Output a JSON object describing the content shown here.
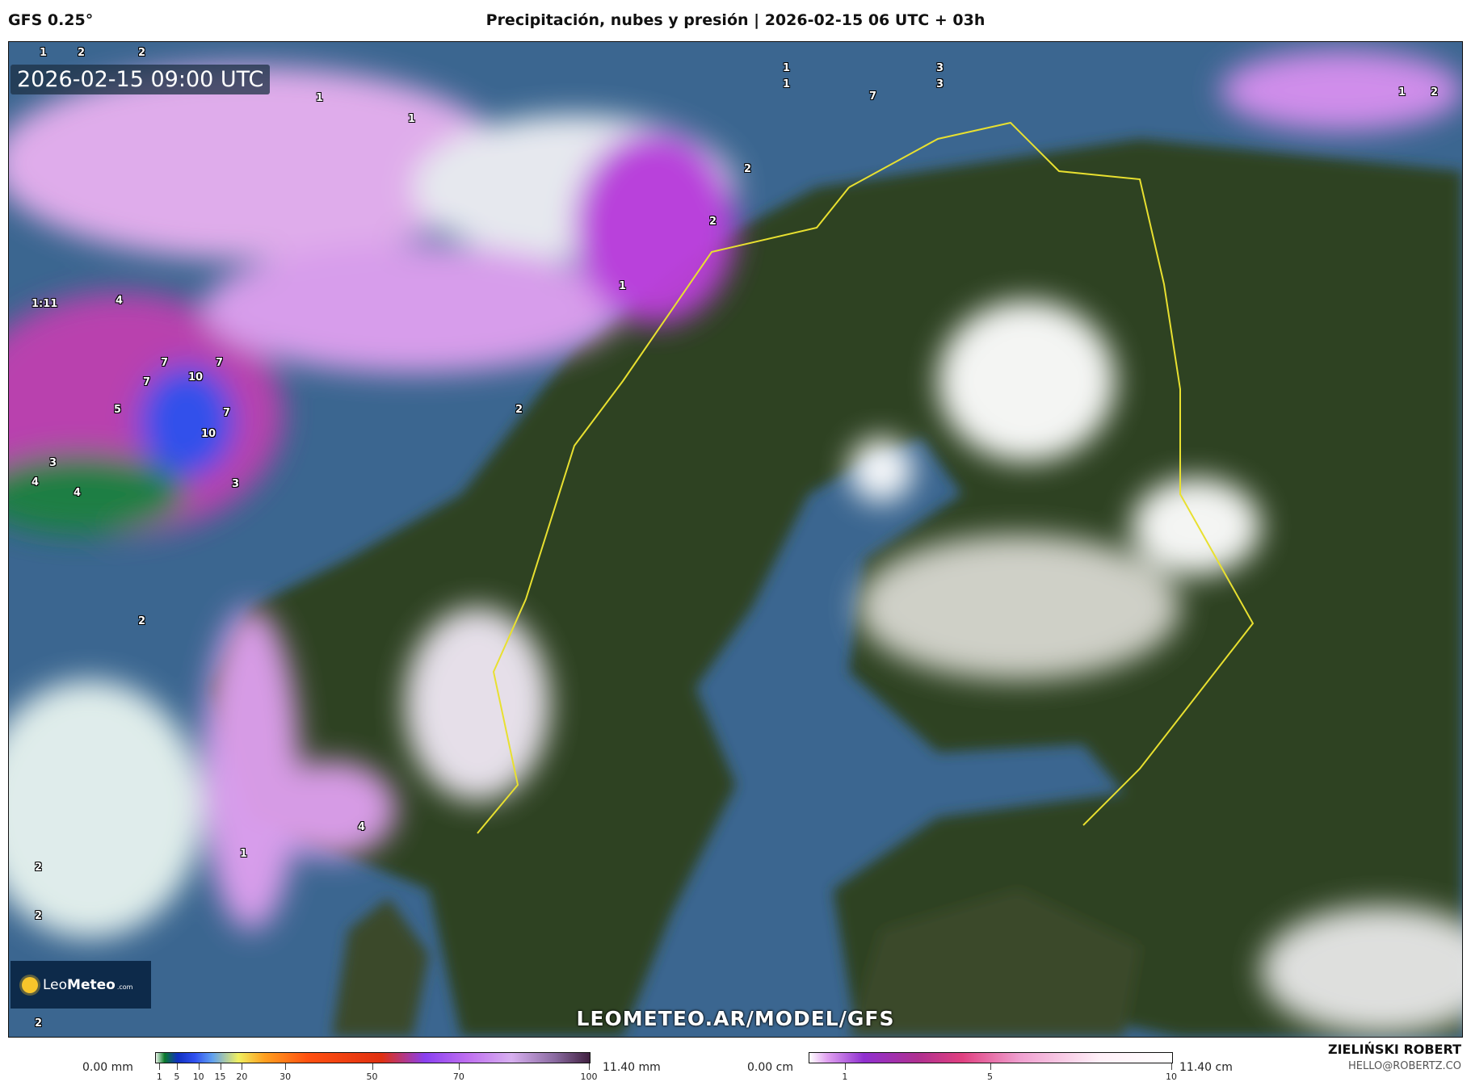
{
  "header": {
    "model": "GFS 0.25°",
    "title": "Precipitación, nubes y presión | 2026-02-15 06 UTC + 03h"
  },
  "map": {
    "timestamp": "2026-02-15 09:00 UTC",
    "watermark": "LEOMETEO.AR/MODEL/GFS",
    "logo": {
      "name_a": "Leo",
      "name_b": "Meteo",
      "suffix": ".com"
    },
    "precip_labels": [
      "1",
      "2",
      "2",
      "1",
      "1",
      "1",
      "1",
      "3",
      "3",
      "7",
      "2",
      "2",
      "2",
      "1",
      "1:11",
      "4",
      "7",
      "7",
      "7",
      "10",
      "5",
      "7",
      "10",
      "3",
      "3",
      "4",
      "4",
      "2",
      "2",
      "1",
      "4",
      "1",
      "2",
      "2",
      "2"
    ]
  },
  "legend_rain": {
    "min": "0.00 mm",
    "max": "11.40 mm",
    "ticks": [
      "1",
      "5",
      "10",
      "15",
      "20",
      "30",
      "50",
      "70",
      "100"
    ],
    "tick_values": [
      1,
      5,
      10,
      15,
      20,
      30,
      50,
      70,
      100
    ]
  },
  "legend_snow": {
    "min": "0.00 cm",
    "max": "11.40 cm",
    "ticks": [
      "1",
      "5",
      "10"
    ],
    "tick_values": [
      1,
      5,
      10
    ]
  },
  "author": {
    "name": "ZIELIŃSKI ROBERT",
    "email": "HELLO@ROBERTZ.CO"
  },
  "colors": {
    "land": "#2f4322",
    "sea": "#3b6690",
    "border": "#e8e030",
    "rain_high": "#3050f0",
    "snow": "#d890f0"
  }
}
